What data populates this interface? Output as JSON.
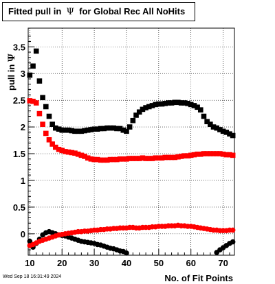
{
  "title": {
    "prefix": "Fitted pull in",
    "symbol": "Ψ",
    "suffix": "for Global Rec All NoHits"
  },
  "footer": "Wed Sep 18 16:31:49 2024",
  "chart_data": {
    "type": "scatter",
    "xlabel": "No. of Fit Points",
    "ylabel_prefix": "pull in",
    "ylabel_symbol": "Ψ",
    "xlim": [
      9.5,
      73.5
    ],
    "ylim": [
      -0.4,
      3.85
    ],
    "xticks": [
      10,
      20,
      30,
      40,
      50,
      60,
      70
    ],
    "yticks": [
      0,
      0.5,
      1,
      1.5,
      2,
      2.5,
      3,
      3.5
    ],
    "ytick_labels": [
      "0",
      "0.5",
      "1",
      "1.5",
      "2",
      "2.5",
      "3",
      "3.5"
    ],
    "grid": true,
    "series": [
      {
        "color": "#000000",
        "marker": "square",
        "x": [
          10,
          11,
          12,
          13,
          14,
          15,
          16,
          17,
          18,
          19,
          20,
          21,
          22,
          23,
          24,
          25,
          26,
          27,
          28,
          29,
          30,
          31,
          32,
          33,
          34,
          35,
          36,
          37,
          38,
          39,
          40,
          41,
          42,
          43,
          44,
          45,
          46,
          47,
          48,
          49,
          50,
          51,
          52,
          53,
          54,
          55,
          56,
          57,
          58,
          59,
          60,
          61,
          62,
          63,
          64,
          65,
          66,
          67,
          68,
          69,
          70,
          71,
          72,
          73
        ],
        "values": [
          2.97,
          3.14,
          3.42,
          2.86,
          2.55,
          2.38,
          2.2,
          2.05,
          1.98,
          1.96,
          1.94,
          1.94,
          1.94,
          1.93,
          1.92,
          1.92,
          1.92,
          1.93,
          1.94,
          1.95,
          1.96,
          1.96,
          1.97,
          1.97,
          1.98,
          1.98,
          1.98,
          1.97,
          1.97,
          1.94,
          1.92,
          2.0,
          2.12,
          2.22,
          2.28,
          2.33,
          2.36,
          2.38,
          2.4,
          2.42,
          2.43,
          2.43,
          2.44,
          2.45,
          2.45,
          2.46,
          2.46,
          2.45,
          2.45,
          2.44,
          2.42,
          2.4,
          2.37,
          2.32,
          2.2,
          2.1,
          2.05,
          2.0,
          1.98,
          1.95,
          1.92,
          1.9,
          1.87,
          1.84
        ]
      },
      {
        "color": "#ff0000",
        "marker": "square",
        "x": [
          10,
          11,
          12,
          13,
          14,
          15,
          16,
          17,
          18,
          19,
          20,
          21,
          22,
          23,
          24,
          25,
          26,
          27,
          28,
          29,
          30,
          31,
          32,
          33,
          34,
          35,
          36,
          37,
          38,
          39,
          40,
          41,
          42,
          43,
          44,
          45,
          46,
          47,
          48,
          49,
          50,
          51,
          52,
          53,
          54,
          55,
          56,
          57,
          58,
          59,
          60,
          61,
          62,
          63,
          64,
          65,
          66,
          67,
          68,
          69,
          70,
          71,
          72,
          73
        ],
        "values": [
          2.49,
          2.48,
          2.45,
          2.25,
          2.05,
          1.88,
          1.76,
          1.68,
          1.62,
          1.58,
          1.56,
          1.54,
          1.53,
          1.52,
          1.51,
          1.49,
          1.47,
          1.45,
          1.42,
          1.4,
          1.39,
          1.39,
          1.38,
          1.38,
          1.38,
          1.39,
          1.39,
          1.39,
          1.4,
          1.4,
          1.4,
          1.41,
          1.41,
          1.41,
          1.41,
          1.42,
          1.41,
          1.41,
          1.41,
          1.42,
          1.42,
          1.42,
          1.43,
          1.43,
          1.43,
          1.43,
          1.44,
          1.45,
          1.46,
          1.46,
          1.47,
          1.48,
          1.49,
          1.49,
          1.5,
          1.5,
          1.5,
          1.5,
          1.5,
          1.5,
          1.49,
          1.48,
          1.48,
          1.47
        ]
      },
      {
        "color": "#000000",
        "marker": "circle",
        "x": [
          10,
          11,
          12,
          13,
          14,
          15,
          16,
          17,
          18,
          19,
          20,
          21,
          22,
          23,
          24,
          25,
          26,
          27,
          28,
          29,
          30,
          31,
          32,
          33,
          34,
          35,
          36,
          37,
          38,
          39,
          40,
          68,
          69,
          70,
          71,
          72,
          73
        ],
        "values": [
          -0.14,
          -0.25,
          -0.18,
          -0.1,
          -0.02,
          0.02,
          0.04,
          0.02,
          0.0,
          -0.02,
          -0.03,
          -0.04,
          -0.06,
          -0.08,
          -0.1,
          -0.12,
          -0.14,
          -0.15,
          -0.16,
          -0.17,
          -0.18,
          -0.2,
          -0.21,
          -0.23,
          -0.25,
          -0.27,
          -0.28,
          -0.3,
          -0.32,
          -0.33,
          -0.36,
          -0.35,
          -0.3,
          -0.26,
          -0.22,
          -0.18,
          -0.15
        ]
      },
      {
        "color": "#ff0000",
        "marker": "circle",
        "x": [
          10,
          11,
          12,
          13,
          14,
          15,
          16,
          17,
          18,
          19,
          20,
          21,
          22,
          23,
          24,
          25,
          26,
          27,
          28,
          29,
          30,
          31,
          32,
          33,
          34,
          35,
          36,
          37,
          38,
          39,
          40,
          41,
          42,
          43,
          44,
          45,
          46,
          47,
          48,
          49,
          50,
          51,
          52,
          53,
          54,
          55,
          56,
          57,
          58,
          59,
          60,
          61,
          62,
          63,
          64,
          65,
          66,
          67,
          68,
          69,
          70,
          71,
          72,
          73
        ],
        "values": [
          -0.22,
          -0.2,
          -0.17,
          -0.14,
          -0.12,
          -0.1,
          -0.08,
          -0.06,
          -0.04,
          -0.02,
          -0.01,
          0.0,
          0.01,
          0.02,
          0.03,
          0.04,
          0.04,
          0.05,
          0.05,
          0.06,
          0.07,
          0.07,
          0.08,
          0.08,
          0.09,
          0.09,
          0.1,
          0.1,
          0.11,
          0.11,
          0.11,
          0.12,
          0.12,
          0.11,
          0.11,
          0.12,
          0.12,
          0.12,
          0.13,
          0.13,
          0.14,
          0.14,
          0.14,
          0.15,
          0.15,
          0.15,
          0.16,
          0.15,
          0.15,
          0.14,
          0.14,
          0.13,
          0.12,
          0.11,
          0.1,
          0.09,
          0.08,
          0.07,
          0.07,
          0.06,
          0.06,
          0.06,
          0.07,
          0.07
        ]
      }
    ]
  }
}
